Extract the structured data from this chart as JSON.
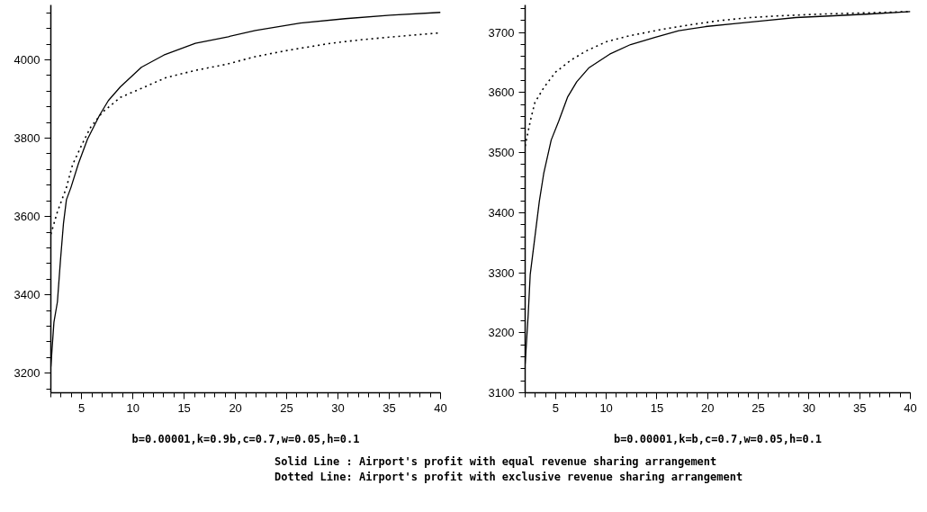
{
  "chart_data": [
    {
      "type": "line",
      "xlabel": "b=0.00001,k=0.9b,c=0.7,w=0.05,h=0.1",
      "xlim": [
        2,
        40
      ],
      "xticks": [
        5,
        10,
        15,
        20,
        25,
        30,
        35,
        40
      ],
      "ylim": [
        3150,
        4140
      ],
      "yticks": [
        3200,
        3400,
        3600,
        3800,
        4000
      ],
      "grid": false,
      "series": [
        {
          "color": "#000000",
          "line_style": "solid",
          "x": [
            2,
            2.3,
            2.64,
            2.94,
            3.23,
            3.52,
            3.96,
            4.69,
            5.57,
            6.74,
            7.61,
            8.78,
            10.83,
            13.02,
            16.09,
            19.31,
            21.94,
            26.33,
            30.7,
            35.1,
            40
          ],
          "values": [
            3217,
            3330,
            3382,
            3489,
            3582,
            3643,
            3674,
            3735,
            3797,
            3858,
            3896,
            3931,
            3981,
            4012,
            4042,
            4059,
            4075,
            4094,
            4105,
            4114,
            4121
          ]
        },
        {
          "color": "#000000",
          "line_style": "dotted",
          "x": [
            2,
            2.64,
            3.52,
            4.1,
            4.98,
            5.86,
            7.03,
            8.78,
            10.83,
            13.17,
            16.09,
            19.02,
            21.94,
            24.87,
            29.25,
            32.2,
            35.1,
            40
          ],
          "values": [
            3555,
            3612,
            3674,
            3731,
            3781,
            3827,
            3866,
            3904,
            3927,
            3954,
            3973,
            3988,
            4008,
            4023,
            4042,
            4051,
            4058,
            4069
          ]
        }
      ],
      "annotations": [
        "Solid Line : Airport's profit with equal revenue sharing arrangement",
        "Dotted Line: Airport's profit with exclusive revenue sharing arrangement"
      ]
    },
    {
      "type": "line",
      "xlabel": "b=0.00001,k=b,c=0.7,w=0.05,h=0.1",
      "xlim": [
        2,
        40
      ],
      "xticks": [
        5,
        10,
        15,
        20,
        25,
        30,
        35,
        40
      ],
      "ylim": [
        3100,
        3746
      ],
      "yticks": [
        3100,
        3200,
        3300,
        3400,
        3500,
        3600,
        3700
      ],
      "grid": false,
      "series": [
        {
          "color": "#000000",
          "line_style": "solid",
          "x": [
            2,
            2.3,
            2.5,
            2.95,
            3.4,
            3.83,
            4.57,
            5.3,
            6.2,
            7.09,
            8.27,
            10.34,
            12.4,
            14.78,
            17.15,
            19.8,
            22.8,
            25.7,
            28.7,
            32.5,
            36.1,
            40
          ],
          "values": [
            3148,
            3230,
            3297,
            3358,
            3419,
            3465,
            3521,
            3552,
            3593,
            3618,
            3641,
            3664,
            3680,
            3692,
            3703,
            3710,
            3715,
            3720,
            3725,
            3728,
            3731,
            3735
          ]
        },
        {
          "color": "#000000",
          "line_style": "dotted",
          "x": [
            2,
            2.5,
            2.95,
            3.83,
            5.0,
            6.5,
            7.98,
            10.05,
            12.4,
            15.4,
            18.3,
            21.2,
            24.2,
            27.2,
            31.6,
            36.1,
            40
          ],
          "values": [
            3511,
            3552,
            3583,
            3608,
            3634,
            3654,
            3669,
            3685,
            3695,
            3705,
            3713,
            3720,
            3725,
            3728,
            3731,
            3733,
            3735
          ]
        }
      ]
    }
  ]
}
